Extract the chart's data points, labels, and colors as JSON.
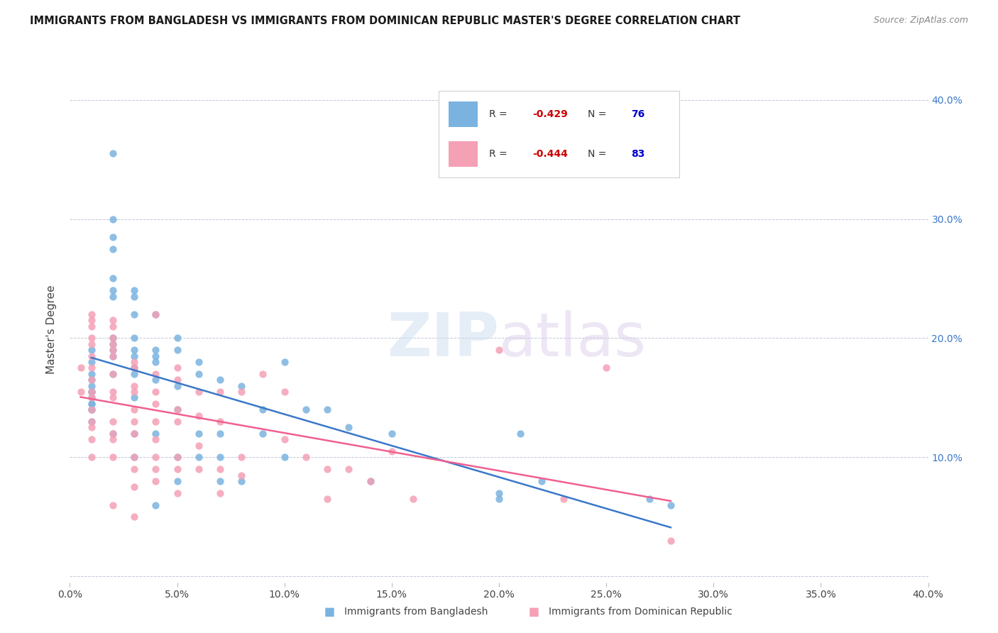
{
  "title": "IMMIGRANTS FROM BANGLADESH VS IMMIGRANTS FROM DOMINICAN REPUBLIC MASTER'S DEGREE CORRELATION CHART",
  "source": "Source: ZipAtlas.com",
  "ylabel": "Master's Degree",
  "xlim": [
    0.0,
    0.4
  ],
  "ylim": [
    -0.005,
    0.42
  ],
  "r_bangladesh": -0.429,
  "n_bangladesh": 76,
  "r_dominican": -0.444,
  "n_dominican": 83,
  "color_bangladesh": "#7ab3e0",
  "color_dominican": "#f4a0b5",
  "line_color_bangladesh": "#3a78c9",
  "line_color_dominican": "#f06090",
  "bangladesh_x": [
    0.01,
    0.01,
    0.01,
    0.01,
    0.01,
    0.01,
    0.01,
    0.01,
    0.01,
    0.01,
    0.01,
    0.01,
    0.01,
    0.01,
    0.02,
    0.02,
    0.02,
    0.02,
    0.02,
    0.02,
    0.02,
    0.02,
    0.02,
    0.02,
    0.02,
    0.02,
    0.02,
    0.03,
    0.03,
    0.03,
    0.03,
    0.03,
    0.03,
    0.03,
    0.03,
    0.03,
    0.03,
    0.03,
    0.04,
    0.04,
    0.04,
    0.04,
    0.04,
    0.04,
    0.04,
    0.05,
    0.05,
    0.05,
    0.05,
    0.05,
    0.05,
    0.06,
    0.06,
    0.06,
    0.06,
    0.07,
    0.07,
    0.07,
    0.07,
    0.08,
    0.08,
    0.09,
    0.09,
    0.1,
    0.1,
    0.11,
    0.12,
    0.13,
    0.14,
    0.15,
    0.2,
    0.2,
    0.21,
    0.22,
    0.27,
    0.28
  ],
  "bangladesh_y": [
    0.19,
    0.18,
    0.17,
    0.165,
    0.16,
    0.155,
    0.155,
    0.155,
    0.15,
    0.145,
    0.145,
    0.14,
    0.14,
    0.13,
    0.355,
    0.3,
    0.285,
    0.275,
    0.25,
    0.24,
    0.235,
    0.2,
    0.195,
    0.19,
    0.185,
    0.17,
    0.12,
    0.24,
    0.235,
    0.22,
    0.2,
    0.19,
    0.185,
    0.175,
    0.17,
    0.15,
    0.12,
    0.1,
    0.22,
    0.19,
    0.185,
    0.18,
    0.165,
    0.12,
    0.06,
    0.2,
    0.19,
    0.16,
    0.14,
    0.1,
    0.08,
    0.18,
    0.17,
    0.12,
    0.1,
    0.165,
    0.12,
    0.1,
    0.08,
    0.16,
    0.08,
    0.14,
    0.12,
    0.18,
    0.1,
    0.14,
    0.14,
    0.125,
    0.08,
    0.12,
    0.07,
    0.065,
    0.12,
    0.08,
    0.065,
    0.06
  ],
  "dominican_x": [
    0.005,
    0.005,
    0.01,
    0.01,
    0.01,
    0.01,
    0.01,
    0.01,
    0.01,
    0.01,
    0.01,
    0.01,
    0.01,
    0.01,
    0.01,
    0.01,
    0.01,
    0.02,
    0.02,
    0.02,
    0.02,
    0.02,
    0.02,
    0.02,
    0.02,
    0.02,
    0.02,
    0.02,
    0.02,
    0.02,
    0.02,
    0.03,
    0.03,
    0.03,
    0.03,
    0.03,
    0.03,
    0.03,
    0.03,
    0.03,
    0.03,
    0.03,
    0.04,
    0.04,
    0.04,
    0.04,
    0.04,
    0.04,
    0.04,
    0.04,
    0.04,
    0.05,
    0.05,
    0.05,
    0.05,
    0.05,
    0.05,
    0.05,
    0.06,
    0.06,
    0.06,
    0.06,
    0.07,
    0.07,
    0.07,
    0.07,
    0.08,
    0.08,
    0.08,
    0.09,
    0.1,
    0.1,
    0.11,
    0.12,
    0.12,
    0.13,
    0.14,
    0.15,
    0.16,
    0.2,
    0.23,
    0.25,
    0.28
  ],
  "dominican_y": [
    0.175,
    0.155,
    0.22,
    0.215,
    0.21,
    0.2,
    0.195,
    0.185,
    0.175,
    0.165,
    0.155,
    0.15,
    0.14,
    0.13,
    0.125,
    0.115,
    0.1,
    0.215,
    0.21,
    0.2,
    0.195,
    0.19,
    0.185,
    0.17,
    0.155,
    0.15,
    0.13,
    0.12,
    0.115,
    0.1,
    0.06,
    0.18,
    0.175,
    0.16,
    0.155,
    0.14,
    0.13,
    0.12,
    0.1,
    0.09,
    0.075,
    0.05,
    0.22,
    0.17,
    0.155,
    0.145,
    0.13,
    0.115,
    0.1,
    0.09,
    0.08,
    0.175,
    0.165,
    0.14,
    0.13,
    0.1,
    0.09,
    0.07,
    0.155,
    0.135,
    0.11,
    0.09,
    0.155,
    0.13,
    0.09,
    0.07,
    0.155,
    0.1,
    0.085,
    0.17,
    0.155,
    0.115,
    0.1,
    0.09,
    0.065,
    0.09,
    0.08,
    0.105,
    0.065,
    0.19,
    0.065,
    0.175,
    0.03
  ]
}
